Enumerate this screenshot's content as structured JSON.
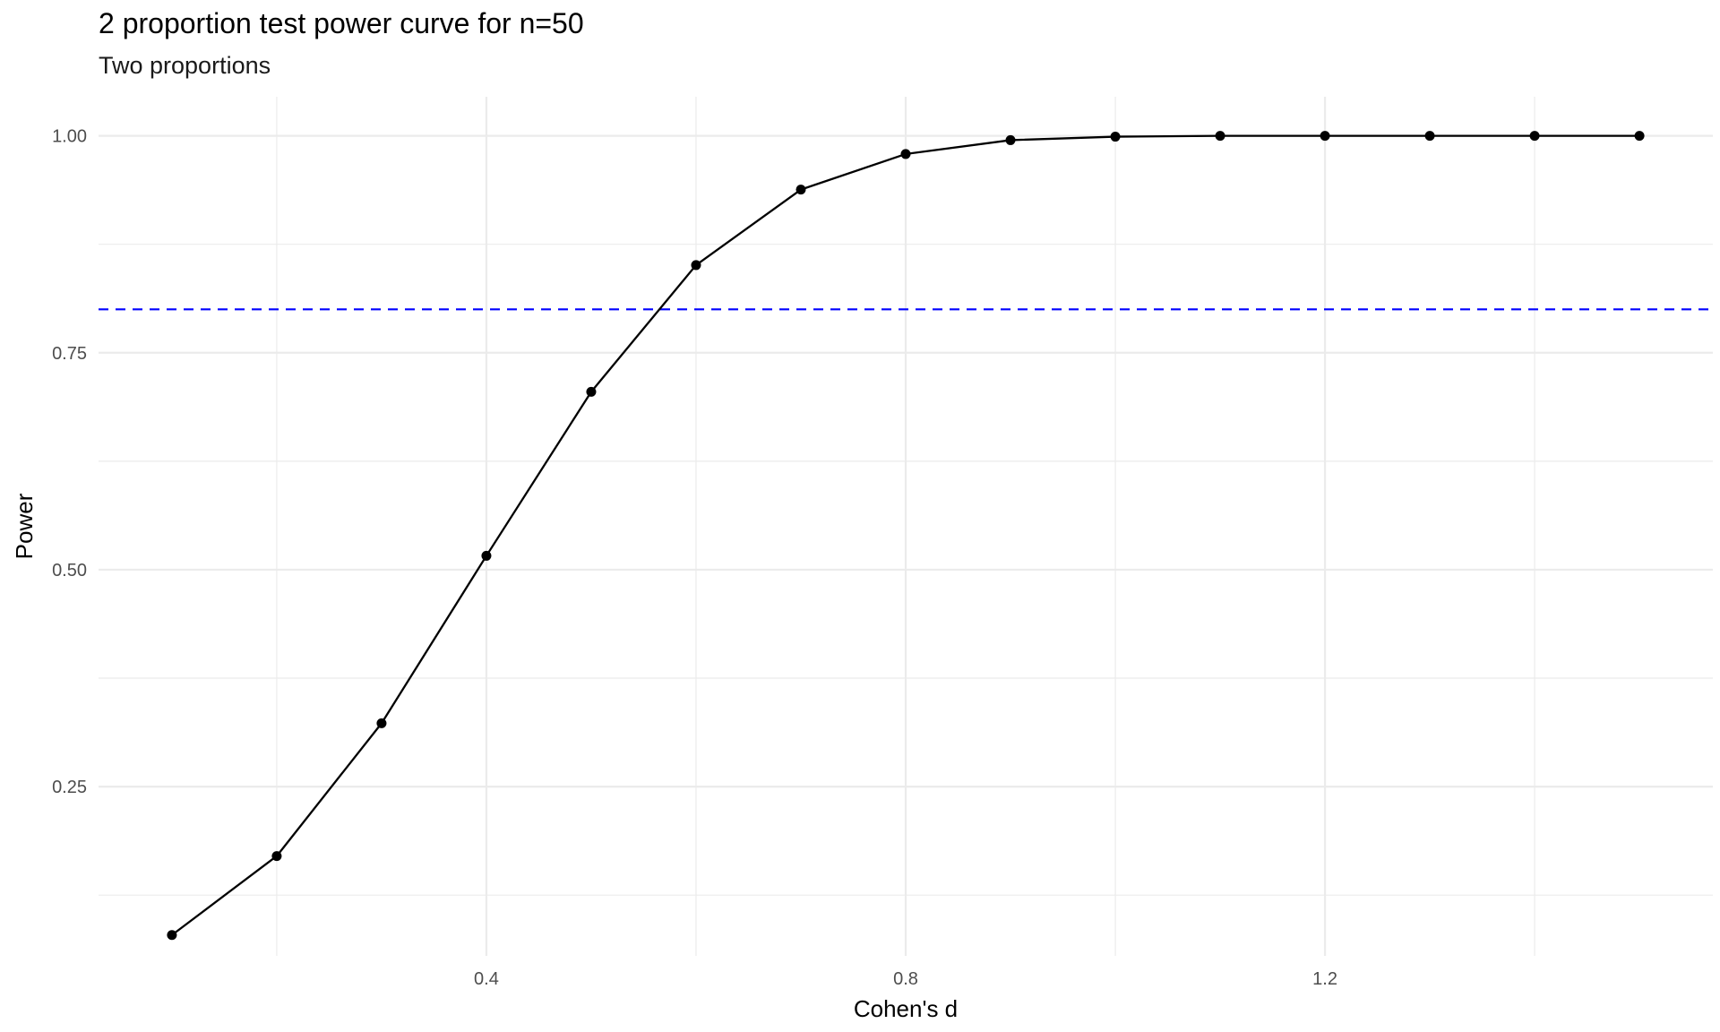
{
  "chart_data": {
    "type": "line",
    "title": "2 proportion test power curve for n=50",
    "subtitle": "Two proportions",
    "xlabel": "Cohen's d",
    "ylabel": "Power",
    "x_ticks": [
      "0.4",
      "0.8",
      "1.2"
    ],
    "y_ticks": [
      "0.25",
      "0.50",
      "0.75",
      "1.00"
    ],
    "xlim": [
      0.03,
      1.57
    ],
    "ylim": [
      0.055,
      1.045
    ],
    "grid": true,
    "series": [
      {
        "x": [
          0.1,
          0.2,
          0.3,
          0.4,
          0.5,
          0.6,
          0.7,
          0.8,
          0.9,
          1.0,
          1.1,
          1.2,
          1.3,
          1.4,
          1.5
        ],
        "y": [
          0.079,
          0.17,
          0.323,
          0.516,
          0.705,
          0.851,
          0.938,
          0.979,
          0.995,
          0.999,
          1.0,
          1.0,
          1.0,
          1.0,
          1.0
        ],
        "color": "#000000",
        "markers": true
      }
    ],
    "reference_lines": [
      {
        "orientation": "horizontal",
        "y": 0.8,
        "color": "#0000ff",
        "style": "dashed"
      }
    ]
  }
}
